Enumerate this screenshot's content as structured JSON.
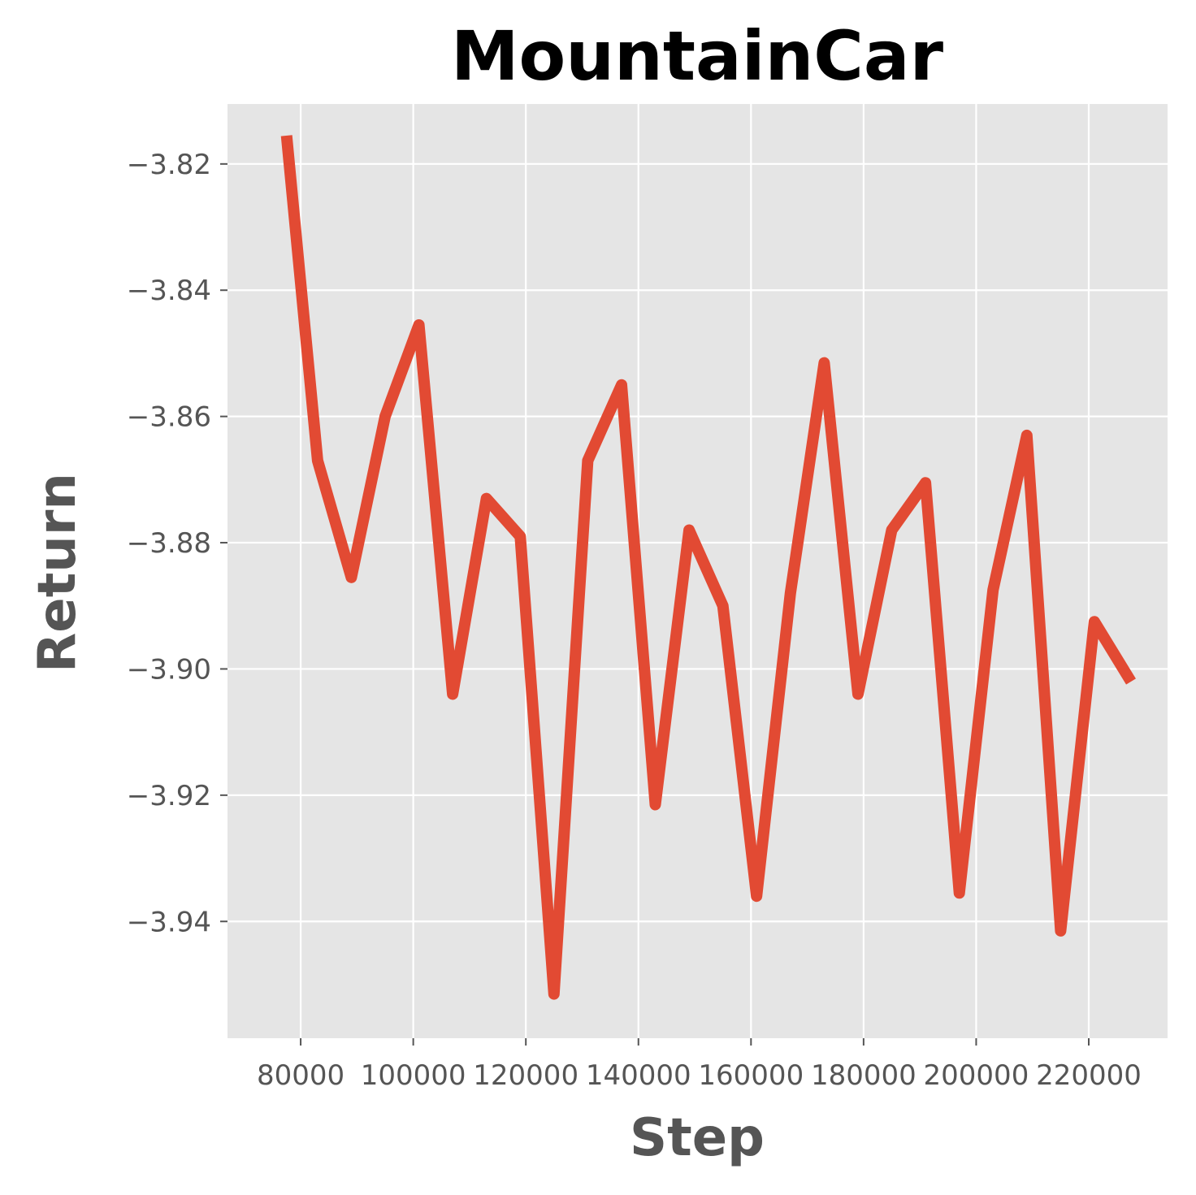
{
  "chart_data": {
    "type": "line",
    "title": "MountainCar",
    "xlabel": "Step",
    "ylabel": "Return",
    "xlim": [
      67000,
      234000
    ],
    "ylim": [
      -3.9585,
      -3.8105
    ],
    "xticks": [
      80000,
      100000,
      120000,
      140000,
      160000,
      180000,
      200000,
      220000
    ],
    "xtick_labels": [
      "80000",
      "100000",
      "120000",
      "140000",
      "160000",
      "180000",
      "200000",
      "220000"
    ],
    "yticks": [
      -3.82,
      -3.84,
      -3.86,
      -3.88,
      -3.9,
      -3.92,
      -3.94
    ],
    "ytick_labels": [
      "−3.82",
      "−3.84",
      "−3.86",
      "−3.88",
      "−3.90",
      "−3.92",
      "−3.94"
    ],
    "grid": true,
    "colors": {
      "line": "#e24a33",
      "panel": "#e5e5e5",
      "grid": "#ffffff"
    },
    "series": [
      {
        "x": [
          77500,
          83000,
          89000,
          95000,
          101000,
          107000,
          113000,
          119000,
          125000,
          131000,
          137000,
          143000,
          149000,
          155000,
          161000,
          167000,
          173000,
          179000,
          185000,
          191000,
          197000,
          203000,
          209000,
          215000,
          221000,
          227500
        ],
        "y": [
          -3.8155,
          -3.867,
          -3.8855,
          -3.86,
          -3.8455,
          -3.904,
          -3.873,
          -3.879,
          -3.9515,
          -3.867,
          -3.855,
          -3.9215,
          -3.878,
          -3.89,
          -3.936,
          -3.888,
          -3.8515,
          -3.904,
          -3.878,
          -3.8705,
          -3.9355,
          -3.8875,
          -3.863,
          -3.9415,
          -3.8925,
          -3.902
        ]
      }
    ]
  }
}
